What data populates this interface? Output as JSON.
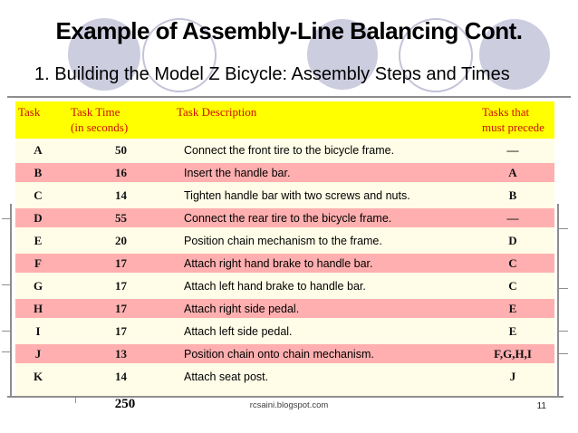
{
  "slide": {
    "title": "Example of Assembly-Line Balancing Cont.",
    "subtitle": "1. Building the Model Z Bicycle: Assembly Steps and Times"
  },
  "table": {
    "headers": {
      "task": "Task",
      "time_line1": "Task Time",
      "time_line2": "(in seconds)",
      "description": "Task Description",
      "precede_line1": "Tasks that",
      "precede_line2": "must precede"
    },
    "rows": [
      {
        "task": "A",
        "time": "50",
        "description": "Connect the front tire to the bicycle frame.",
        "precede": "—"
      },
      {
        "task": "B",
        "time": "16",
        "description": "Insert the handle bar.",
        "precede": "A"
      },
      {
        "task": "C",
        "time": "14",
        "description": "Tighten handle bar with two screws and nuts.",
        "precede": "B"
      },
      {
        "task": "D",
        "time": "55",
        "description": "Connect the rear tire to the bicycle frame.",
        "precede": "—"
      },
      {
        "task": "E",
        "time": "20",
        "description": "Position chain mechanism to the frame.",
        "precede": "D"
      },
      {
        "task": "F",
        "time": "17",
        "description": "Attach right hand brake to handle bar.",
        "precede": "C"
      },
      {
        "task": "G",
        "time": "17",
        "description": "Attach left hand brake to handle bar.",
        "precede": "C"
      },
      {
        "task": "H",
        "time": "17",
        "description": "Attach right side pedal.",
        "precede": "E"
      },
      {
        "task": "I",
        "time": "17",
        "description": "Attach left side pedal.",
        "precede": "E"
      },
      {
        "task": "J",
        "time": "13",
        "description": "Position chain onto chain mechanism.",
        "precede": "F,G,H,I"
      },
      {
        "task": "K",
        "time": "14",
        "description": "Attach seat post.",
        "precede": "J"
      }
    ],
    "total_time": "250"
  },
  "footer": {
    "watermark": "rcsaini.blogspot.com",
    "page_number": "11"
  },
  "colors": {
    "header_bg": "#ffff00",
    "header_text": "#cc1100",
    "row_cream": "#fffde7",
    "row_pink": "#ffafaf",
    "circle_fill": "#cdcde0",
    "circle_stroke": "#c3c3da",
    "frame_line": "#8e8e8e"
  }
}
